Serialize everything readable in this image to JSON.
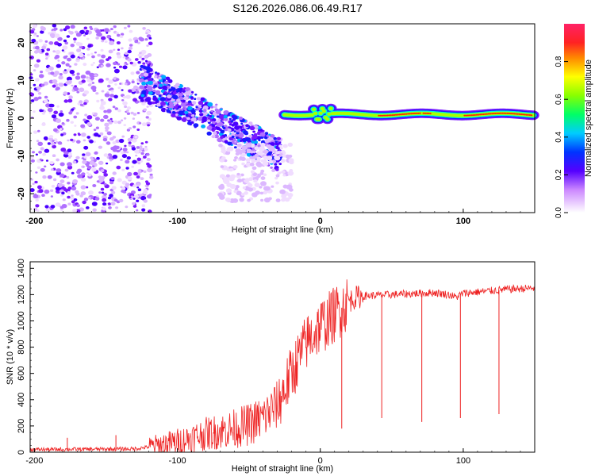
{
  "title": "S126.2026.086.06.49.R17",
  "colors": {
    "line": "#ee2222",
    "axis": "#000000"
  },
  "chart_data": [
    {
      "type": "heatmap",
      "name": "spectrogram",
      "xlabel": "Height of straight line (km)",
      "ylabel": "Frequency (Hz)",
      "xlim": [
        -203,
        150
      ],
      "ylim": [
        -25,
        25
      ],
      "xticks": [
        -200,
        -100,
        0,
        100
      ],
      "xtick_labels": [
        "-200",
        "-100",
        "0",
        "100"
      ],
      "yticks": [
        -20,
        -10,
        0,
        10,
        20
      ],
      "ytick_labels": [
        "-20",
        "-10",
        "0",
        "10",
        "20"
      ],
      "trace_description": "noise region x<-120; descending trace from ~10 Hz at -125 km to ~-10 Hz at -30 km; steady ~1 Hz trace from -25 km to 150 km",
      "colorbar": {
        "label": "Normalized spectral amplitude",
        "range": [
          0,
          1
        ],
        "ticks": [
          0.0,
          0.2,
          0.4,
          0.6,
          0.8
        ],
        "tick_labels": [
          "0.0",
          "0.2",
          "0.4",
          "0.6",
          "0.8"
        ]
      }
    },
    {
      "type": "line",
      "name": "snr",
      "xlabel": "Height of straight line (km)",
      "ylabel": "SNR (10 * v/v)",
      "xlim": [
        -203,
        150
      ],
      "ylim": [
        0,
        1450
      ],
      "xticks": [
        -200,
        -100,
        0,
        100
      ],
      "xtick_labels": [
        "-200",
        "-100",
        "0",
        "100"
      ],
      "yticks": [
        0,
        200,
        400,
        600,
        800,
        1000,
        1200,
        1400
      ],
      "ytick_labels": [
        "0",
        "200",
        "400",
        "600",
        "800",
        "1000",
        "1200",
        "1400"
      ],
      "envelope_x": [
        -203,
        -130,
        -120,
        -110,
        -100,
        -90,
        -80,
        -70,
        -60,
        -50,
        -40,
        -30,
        -25,
        -20,
        -15,
        -10,
        -5,
        0,
        5,
        10,
        15,
        20,
        25,
        30,
        40,
        50,
        60,
        70,
        80,
        90,
        95,
        100,
        110,
        120,
        130,
        150
      ],
      "envelope_y": [
        20,
        25,
        40,
        60,
        80,
        110,
        140,
        160,
        180,
        210,
        260,
        360,
        480,
        600,
        720,
        830,
        900,
        960,
        1000,
        1050,
        1100,
        1150,
        1180,
        1190,
        1195,
        1200,
        1205,
        1210,
        1215,
        1200,
        1180,
        1210,
        1220,
        1230,
        1240,
        1250
      ],
      "dips_x": [
        -177,
        -143,
        15,
        43,
        71,
        98,
        125
      ],
      "dips_y": [
        110,
        130,
        180,
        260,
        230,
        260,
        290
      ]
    }
  ]
}
